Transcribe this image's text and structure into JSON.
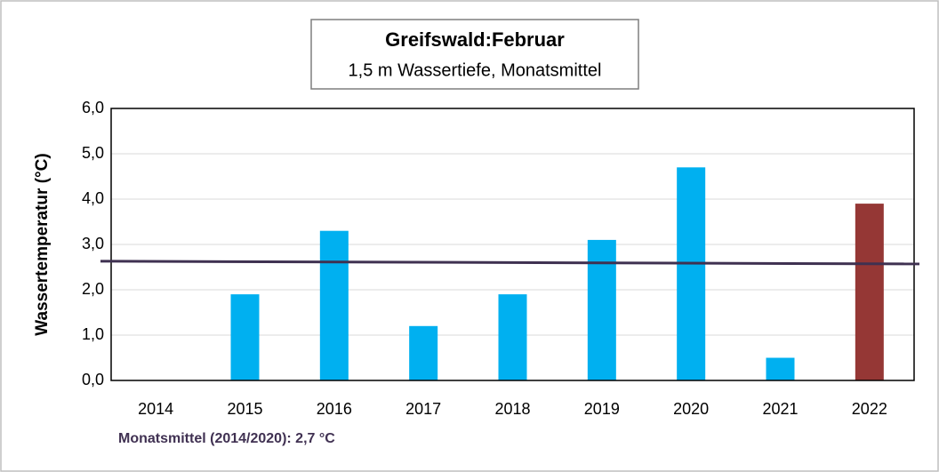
{
  "chart_data": {
    "type": "bar",
    "title": "Greifswald:Februar",
    "subtitle": "1,5 m Wassertiefe, Monatsmittel",
    "y_label": "Wassertemperatur (°C)",
    "annotation": "Monatsmittel (2014/2020): 2,7 °C",
    "categories": [
      "2014",
      "2015",
      "2016",
      "2017",
      "2018",
      "2019",
      "2020",
      "2021",
      "2022"
    ],
    "values": [
      null,
      1.9,
      3.3,
      1.2,
      1.9,
      3.1,
      4.7,
      0.5,
      3.9
    ],
    "colors": [
      "#00b0f0",
      "#00b0f0",
      "#00b0f0",
      "#00b0f0",
      "#00b0f0",
      "#00b0f0",
      "#00b0f0",
      "#00b0f0",
      "#953735"
    ],
    "reference_line": {
      "color": "#3f3151",
      "values": [
        2.63,
        2.57
      ]
    },
    "ylim": [
      0,
      6
    ],
    "yticks": [
      {
        "value": 0,
        "label": "0,0"
      },
      {
        "value": 1,
        "label": "1,0"
      },
      {
        "value": 2,
        "label": "2,0"
      },
      {
        "value": 3,
        "label": "3,0"
      },
      {
        "value": 4,
        "label": "4,0"
      },
      {
        "value": 5,
        "label": "5,0"
      },
      {
        "value": 6,
        "label": "6,0"
      }
    ],
    "grid": true
  }
}
